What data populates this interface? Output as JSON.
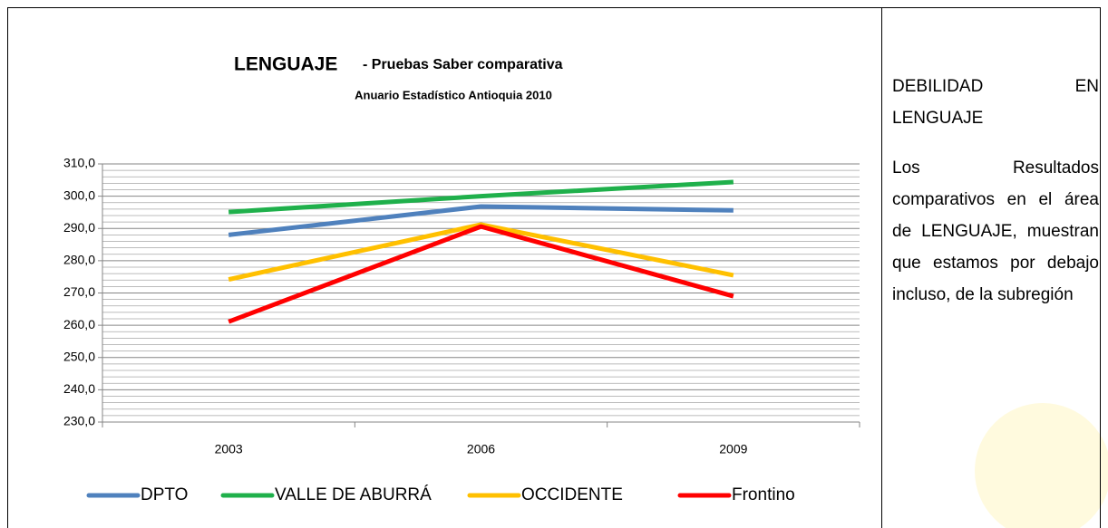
{
  "chart_data": {
    "type": "line",
    "title": "LENGUAJE",
    "title_suffix": "- Pruebas Saber comparativa",
    "subtitle": "Anuario Estadístico Antioquia 2010",
    "categories": [
      "2003",
      "2006",
      "2009"
    ],
    "series": [
      {
        "name": "DPTO",
        "color": "#4f81bd",
        "values": [
          288.0,
          296.8,
          295.6
        ]
      },
      {
        "name": "VALLE DE ABURRÁ",
        "color": "#1fb04b",
        "values": [
          295.1,
          300.0,
          304.4
        ]
      },
      {
        "name": "OCCIDENTE",
        "color": "#ffc000",
        "values": [
          274.2,
          291.2,
          275.5
        ]
      },
      {
        "name": "Frontino",
        "color": "#ff0000",
        "values": [
          261.1,
          290.6,
          269.0
        ]
      }
    ],
    "ylim": [
      230,
      310
    ],
    "yticks": [
      {
        "value": 230,
        "label": "230,0"
      },
      {
        "value": 240,
        "label": "240,0"
      },
      {
        "value": 250,
        "label": "250,0"
      },
      {
        "value": 260,
        "label": "260,0"
      },
      {
        "value": 270,
        "label": "270,0"
      },
      {
        "value": 280,
        "label": "280,0"
      },
      {
        "value": 290,
        "label": "290,0"
      },
      {
        "value": 300,
        "label": "300,0"
      },
      {
        "value": 310,
        "label": "310,0"
      }
    ],
    "grid": true,
    "minor_grid": true,
    "legend": "bottom"
  },
  "side_panel": {
    "heading": "DEBILIDAD EN LENGUAJE",
    "text": "Los Resultados comparativos en el área de LENGUAJE, muestran que estamos por debajo incluso, de la subregión"
  }
}
